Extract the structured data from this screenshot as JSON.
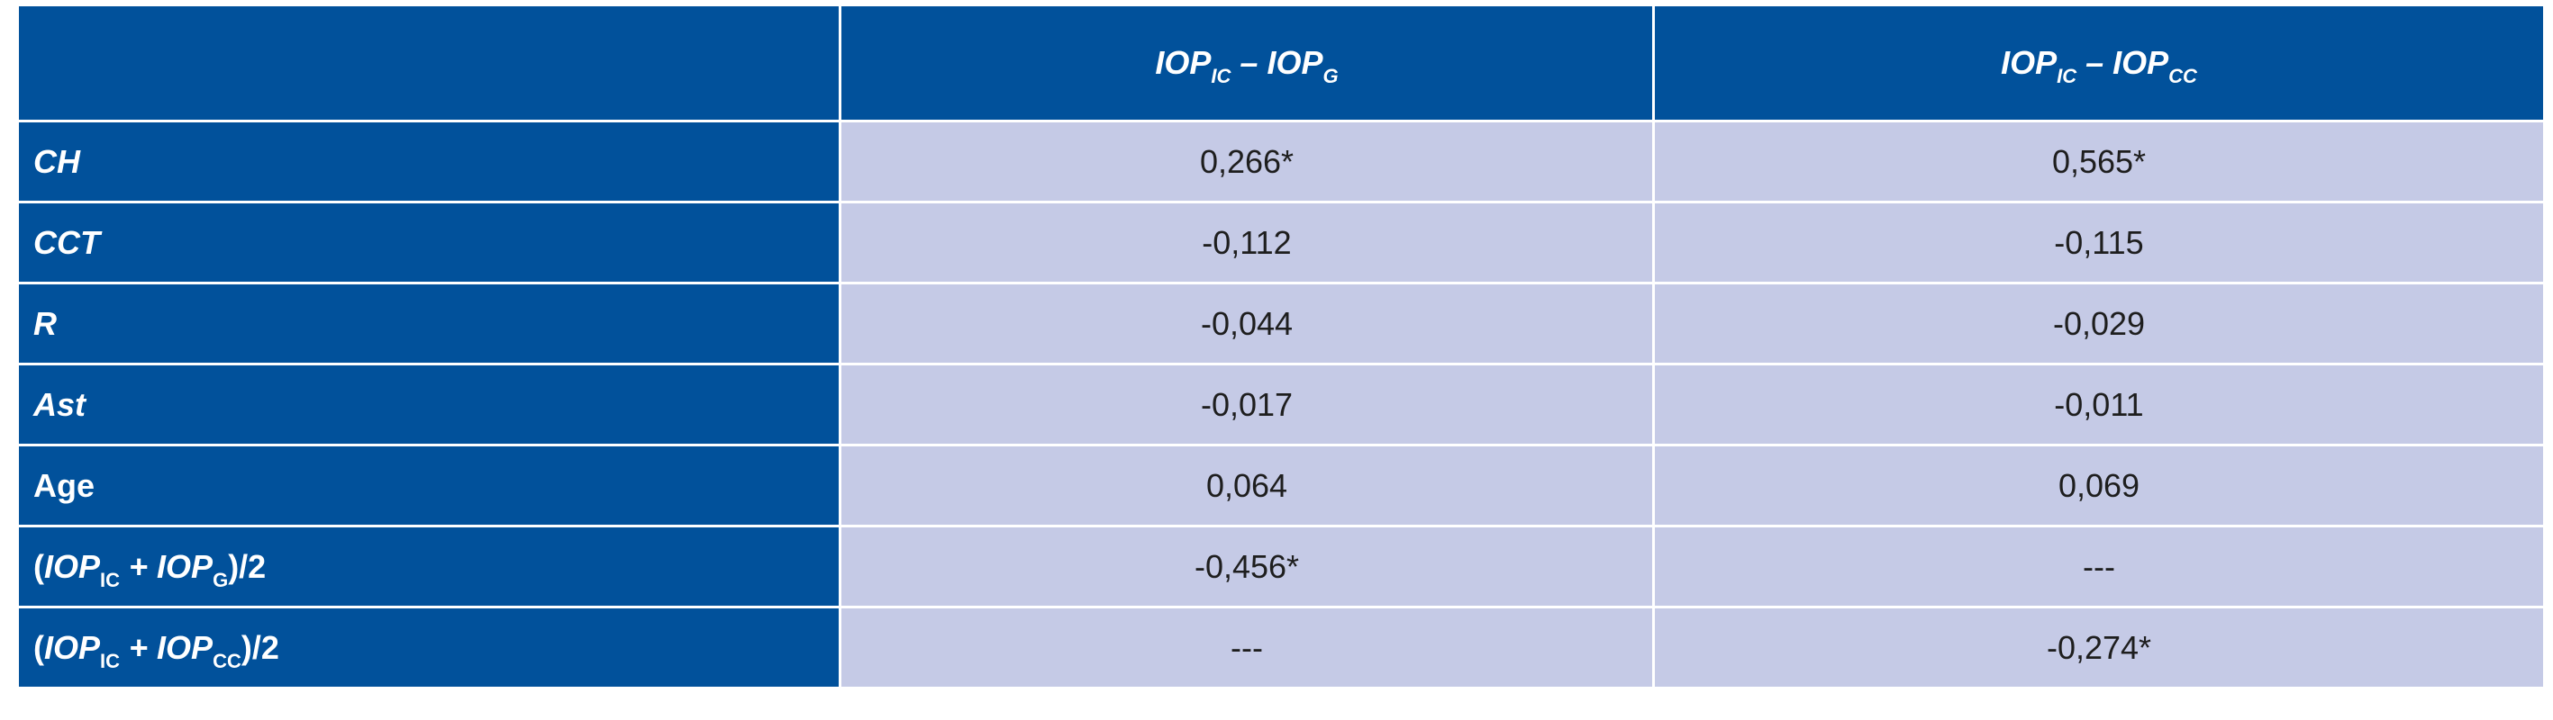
{
  "table": {
    "columns": [
      [
        "IOP",
        "IC",
        " – IOP",
        "G"
      ],
      [
        "IOP",
        "IC",
        " – IOP",
        "CC"
      ]
    ],
    "rows": [
      {
        "label": [
          "CH"
        ],
        "cells": [
          "0,266*",
          "0,565*"
        ]
      },
      {
        "label": [
          "CCT"
        ],
        "cells": [
          "-0,112",
          "-0,115"
        ]
      },
      {
        "label": [
          "R"
        ],
        "cells": [
          "-0,044",
          "-0,029"
        ]
      },
      {
        "label": [
          "Ast"
        ],
        "cells": [
          "-0,017",
          "-0,011"
        ]
      },
      {
        "label": [
          "Age"
        ],
        "cells": [
          "0,064",
          "0,069"
        ]
      },
      {
        "label": [
          "(",
          "IOP",
          "IC",
          " + IOP",
          "G",
          ")/2"
        ],
        "cells": [
          "-0,456*",
          "---"
        ]
      },
      {
        "label": [
          "(",
          "IOP",
          "IC",
          " + IOP",
          "CC",
          ")/2"
        ],
        "cells": [
          "---",
          "-0,274*"
        ]
      }
    ]
  }
}
